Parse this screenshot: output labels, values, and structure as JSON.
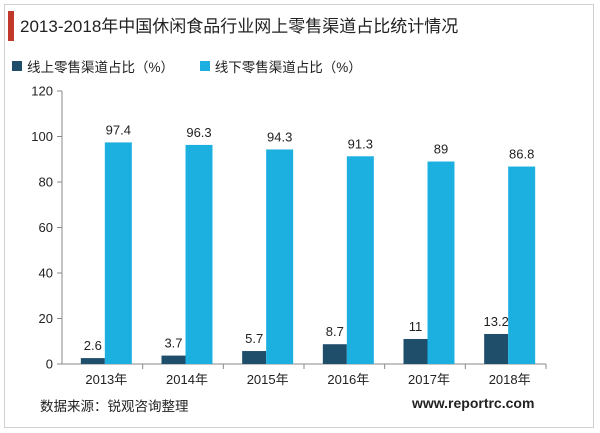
{
  "title": "2013-2018年中国休闲食品行业网上零售渠道占比统计情况",
  "colors": {
    "accent": "#c0392b",
    "series1": "#1f4e6b",
    "series2": "#1cb0e0"
  },
  "chart_data": {
    "type": "bar",
    "categories": [
      "2013年",
      "2014年",
      "2015年",
      "2016年",
      "2017年",
      "2018年"
    ],
    "series": [
      {
        "name": "线上零售渠道占比（%）",
        "values": [
          2.6,
          3.7,
          5.7,
          8.7,
          11,
          13.2
        ]
      },
      {
        "name": "线下零售渠道占比（%）",
        "values": [
          97.4,
          96.3,
          94.3,
          91.3,
          89,
          86.8
        ]
      }
    ],
    "ylim": [
      0,
      120
    ],
    "yticks": [
      0,
      20,
      40,
      60,
      80,
      100,
      120
    ],
    "grid": false,
    "legend": "top-left"
  },
  "source": "数据来源：锐观咨询整理",
  "website": "www.reportrc.com"
}
